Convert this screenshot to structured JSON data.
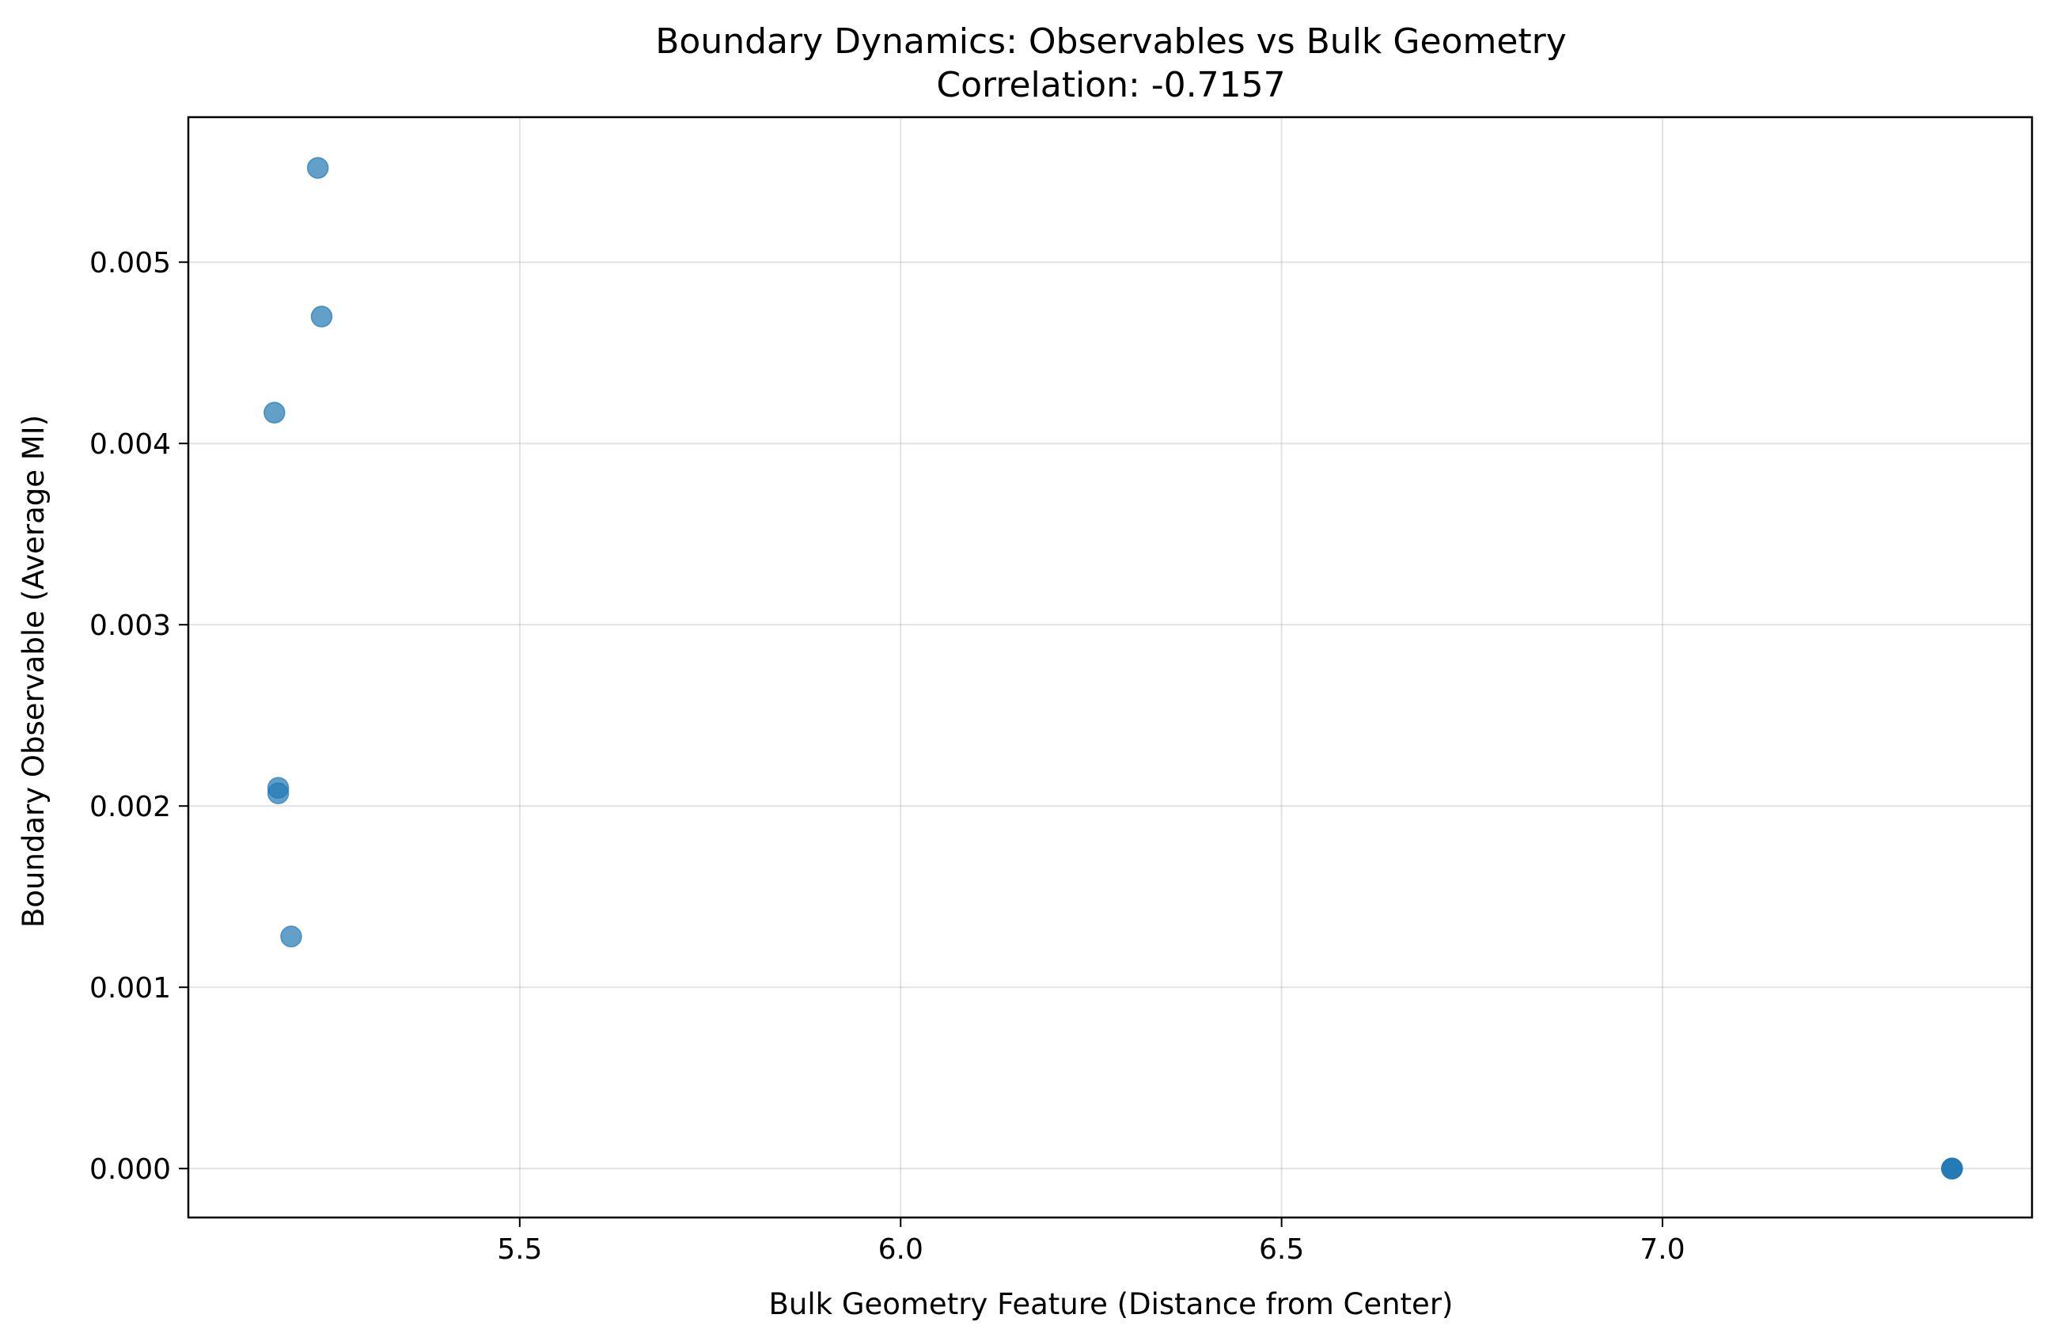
{
  "chart_data": {
    "type": "scatter",
    "title": "Boundary Dynamics: Observables vs Bulk Geometry",
    "subtitle": "Correlation: -0.7157",
    "xlabel": "Bulk Geometry Feature (Distance from Center)",
    "ylabel": "Boundary Observable (Average MI)",
    "xlim": [
      5.065,
      7.485
    ],
    "ylim": [
      -0.00027,
      0.0058
    ],
    "xticks": [
      5.5,
      6.0,
      6.5,
      7.0
    ],
    "xtick_labels": [
      "5.5",
      "6.0",
      "6.5",
      "7.0"
    ],
    "yticks": [
      0.0,
      0.001,
      0.002,
      0.003,
      0.004,
      0.005
    ],
    "ytick_labels": [
      "0.000",
      "0.001",
      "0.002",
      "0.003",
      "0.004",
      "0.005"
    ],
    "grid": true,
    "marker_color": "#1f77b4",
    "marker_alpha": 0.7,
    "points": [
      {
        "x": 5.235,
        "y": 0.00552
      },
      {
        "x": 5.24,
        "y": 0.0047
      },
      {
        "x": 5.178,
        "y": 0.00417
      },
      {
        "x": 5.183,
        "y": 0.0021
      },
      {
        "x": 5.183,
        "y": 0.00207
      },
      {
        "x": 5.2,
        "y": 0.00128
      },
      {
        "x": 7.38,
        "y": 0.0
      },
      {
        "x": 7.38,
        "y": 0.0
      },
      {
        "x": 7.38,
        "y": 0.0
      }
    ]
  }
}
